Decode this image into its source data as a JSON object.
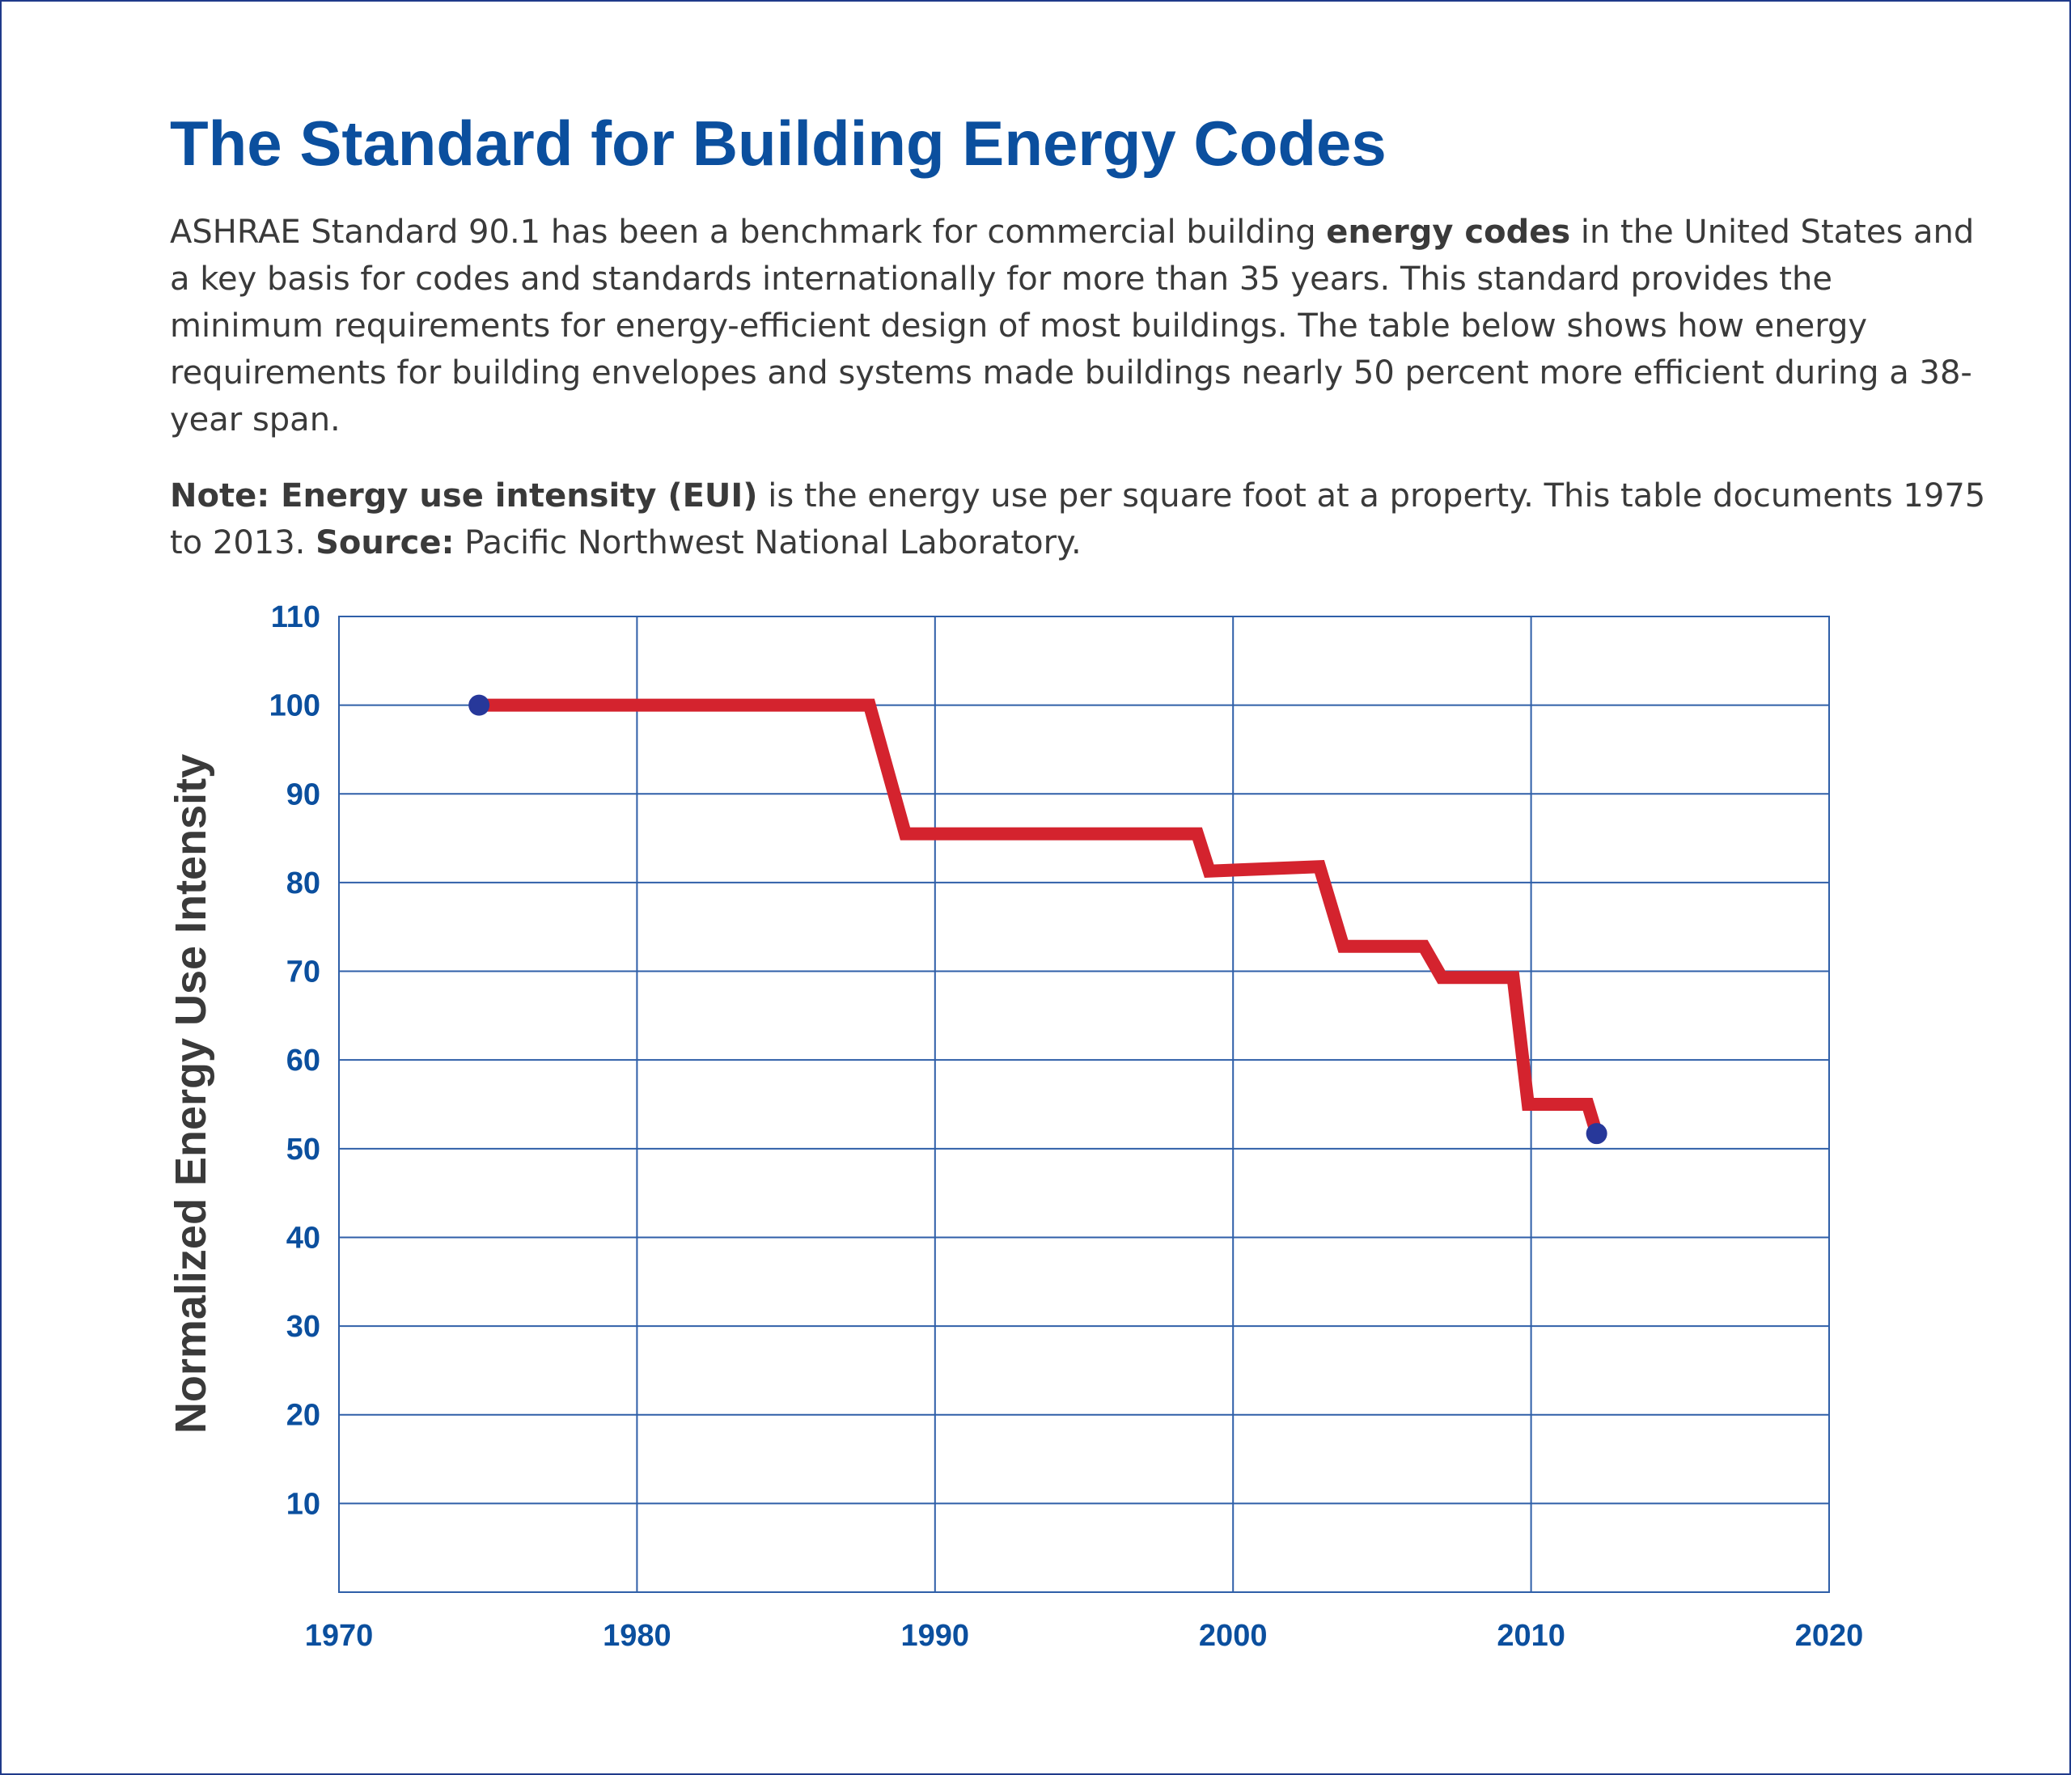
{
  "header": {
    "title": "The Standard for Building Energy Codes"
  },
  "description": {
    "part1": "ASHRAE Standard 90.1 has been a benchmark for commercial building ",
    "bold": "energy codes",
    "part2": " in the United States and a key basis for codes and standards internationally for more than 35 years. This standard provides the minimum requirements for energy-efficient design of most buildings. The table below shows how energy requirements for building envelopes and systems made buildings nearly 50 percent more efficient during a 38-year span."
  },
  "note": {
    "label": "Note: Energy use intensity (EUI)",
    "text": " is the energy use per square foot at a property. This table documents 1975 to 2013. ",
    "source_label": "Source:",
    "source_text": " Pacific Northwest National Laboratory."
  },
  "colors": {
    "title": "#0b4f9e",
    "axis": "#0b4f9e",
    "grid": "#2f5fa8",
    "line": "#d4232e",
    "marker": "#27389a",
    "text": "#3a3a3a"
  },
  "chart_data": {
    "type": "line",
    "title": "",
    "xlabel": "",
    "ylabel": "Normalized Energy Use Intensity",
    "xlim": [
      1970,
      2020
    ],
    "ylim": [
      0,
      110
    ],
    "x_ticks": [
      1970,
      1980,
      1990,
      2000,
      2010,
      2020
    ],
    "y_ticks": [
      10,
      20,
      30,
      40,
      50,
      60,
      70,
      80,
      90,
      100,
      110
    ],
    "grid": true,
    "series": [
      {
        "points": [
          [
            1974.7,
            100
          ],
          [
            1987.8,
            100
          ],
          [
            1989.0,
            85.5
          ],
          [
            1998.8,
            85.5
          ],
          [
            1999.2,
            81.3
          ],
          [
            2002.9,
            81.8
          ],
          [
            2003.7,
            72.8
          ],
          [
            2006.4,
            72.8
          ],
          [
            2007.0,
            69.3
          ],
          [
            2009.4,
            69.3
          ],
          [
            2009.9,
            55.0
          ],
          [
            2011.9,
            55.0
          ],
          [
            2012.2,
            51.7
          ]
        ]
      }
    ],
    "markers": [
      {
        "x": 1974.7,
        "y": 100
      },
      {
        "x": 2012.2,
        "y": 51.7
      }
    ]
  }
}
